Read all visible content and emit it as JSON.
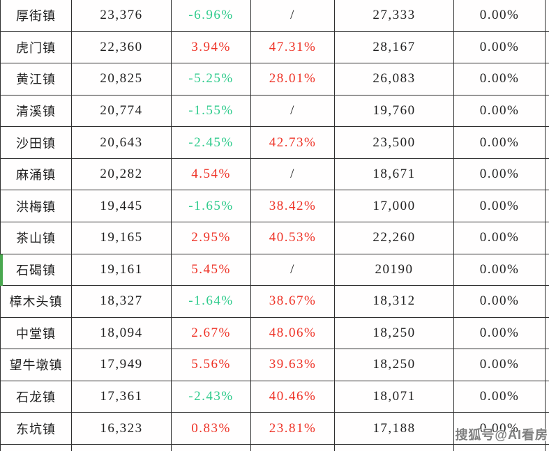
{
  "colors": {
    "positive_red": "#ee3226",
    "negative_green": "#2fcb8c",
    "text_ink": "#1f1f1f",
    "grid_border": "#2f2f2f",
    "row_marker_green": "#4aa74f",
    "watermark_gray": "#7e7e7e"
  },
  "watermark": {
    "text": "搜狐号@AI看房"
  },
  "chart_data": {
    "type": "table",
    "header_visible": false,
    "marked_row": "石碣镇",
    "rows": [
      [
        "厚街镇",
        "23,376",
        "-6.96%",
        "/",
        "27,333",
        "0.00%"
      ],
      [
        "虎门镇",
        "22,360",
        "3.94%",
        "47.31%",
        "28,167",
        "0.00%"
      ],
      [
        "黄江镇",
        "20,825",
        "-5.25%",
        "28.01%",
        "26,083",
        "0.00%"
      ],
      [
        "清溪镇",
        "20,774",
        "-1.55%",
        "/",
        "19,760",
        "0.00%"
      ],
      [
        "沙田镇",
        "20,643",
        "-2.45%",
        "42.73%",
        "23,500",
        "0.00%"
      ],
      [
        "麻涌镇",
        "20,282",
        "4.54%",
        "/",
        "18,671",
        "0.00%"
      ],
      [
        "洪梅镇",
        "19,445",
        "-1.65%",
        "38.42%",
        "17,000",
        "0.00%"
      ],
      [
        "茶山镇",
        "19,165",
        "2.95%",
        "40.53%",
        "22,260",
        "0.00%"
      ],
      [
        "石碣镇",
        "19,161",
        "5.45%",
        "/",
        "20190",
        "0.00%"
      ],
      [
        "樟木头镇",
        "18,327",
        "-1.64%",
        "38.67%",
        "18,312",
        "0.00%"
      ],
      [
        "中堂镇",
        "18,094",
        "2.67%",
        "48.06%",
        "18,250",
        "0.00%"
      ],
      [
        "望牛墩镇",
        "17,949",
        "5.56%",
        "39.63%",
        "18,250",
        "0.00%"
      ],
      [
        "石龙镇",
        "17,361",
        "-2.43%",
        "40.46%",
        "18,071",
        "0.00%"
      ],
      [
        "东坑镇",
        "16,323",
        "0.83%",
        "23.81%",
        "17,188",
        "0.00%"
      ]
    ]
  }
}
